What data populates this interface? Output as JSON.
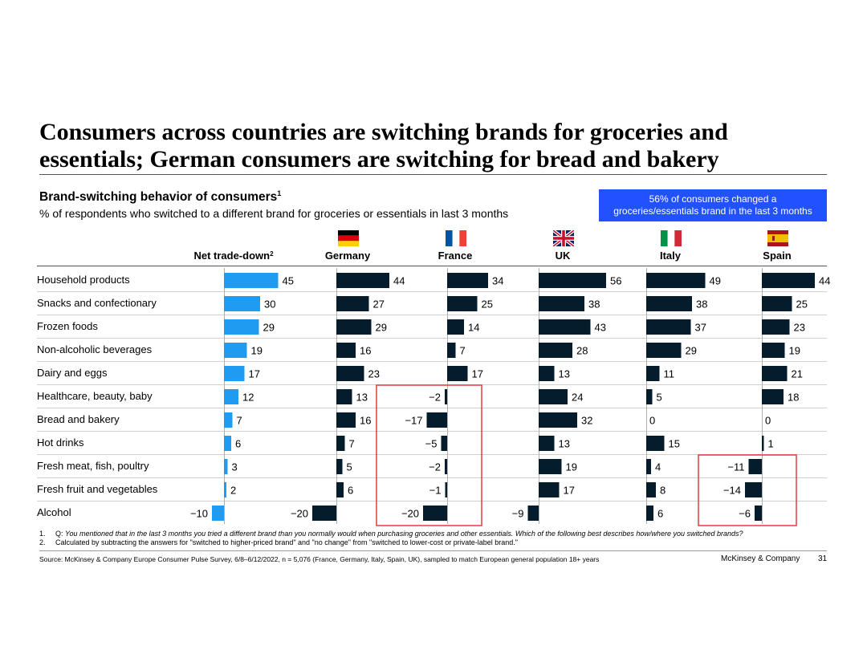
{
  "title": "Consumers across countries are switching brands for groceries and essentials; German consumers are switching for bread and bakery",
  "subtitle": "Brand-switching behavior of consumers",
  "subtitle_sup": "1",
  "description": "% of respondents who switched to a different brand for groceries or essentials in last 3 months",
  "callout": {
    "line1": "56% of consumers changed a",
    "line2": "groceries/essentials brand in the last 3 months",
    "color": "#2251ff"
  },
  "chart_data": {
    "type": "bar",
    "orientation": "horizontal",
    "categories": [
      "Household products",
      "Snacks and confectionary",
      "Frozen foods",
      "Non-alcoholic beverages",
      "Dairy and eggs",
      "Healthcare, beauty, baby",
      "Bread and bakery",
      "Hot drinks",
      "Fresh meat, fish, poultry",
      "Fresh fruit and vegetables",
      "Alcohol"
    ],
    "series": [
      {
        "name": "Net trade-down",
        "sup": "2",
        "color": "#1f9bf2",
        "values": [
          45,
          30,
          29,
          19,
          17,
          12,
          7,
          6,
          3,
          2,
          -10
        ]
      },
      {
        "name": "Germany",
        "flag": "germany-flag-icon",
        "color": "#051c2c",
        "values": [
          44,
          27,
          29,
          16,
          23,
          13,
          16,
          7,
          5,
          6,
          -20
        ]
      },
      {
        "name": "France",
        "flag": "france-flag-icon",
        "color": "#051c2c",
        "values": [
          34,
          25,
          14,
          7,
          17,
          -2,
          -17,
          -5,
          -2,
          -1,
          -20
        ]
      },
      {
        "name": "UK",
        "flag": "uk-flag-icon",
        "color": "#051c2c",
        "values": [
          56,
          38,
          43,
          28,
          13,
          24,
          32,
          13,
          19,
          17,
          -9
        ]
      },
      {
        "name": "Italy",
        "flag": "italy-flag-icon",
        "color": "#051c2c",
        "values": [
          49,
          38,
          37,
          29,
          11,
          5,
          0,
          15,
          4,
          8,
          6
        ]
      },
      {
        "name": "Spain",
        "flag": "spain-flag-icon",
        "color": "#051c2c",
        "values": [
          44,
          25,
          23,
          19,
          21,
          18,
          0,
          1,
          -11,
          -14,
          -6
        ]
      }
    ],
    "highlights": [
      {
        "series": "France",
        "categories": [
          "Healthcare, beauty, baby",
          "Bread and bakery",
          "Hot drinks",
          "Fresh meat, fish, poultry",
          "Fresh fruit and vegetables",
          "Alcohol"
        ],
        "color": "#e8383d"
      },
      {
        "series": "Spain",
        "categories": [
          "Fresh meat, fish, poultry",
          "Fresh fruit and vegetables",
          "Alcohol"
        ],
        "color": "#e8383d"
      }
    ]
  },
  "footnotes": [
    {
      "num": "1.",
      "prefix": "Q: ",
      "text": "You mentioned that in the last 3 months you tried a different brand than you normally would when purchasing groceries and other essentials. Which of the following best describes how/where you switched brands?"
    },
    {
      "num": "2.",
      "prefix": "",
      "text": "Calculated by subtracting the answers for \"switched to higher-priced brand\" and \"no change\" from \"switched to lower-cost or private-label brand.\""
    }
  ],
  "source": "Source: McKinsey & Company Europe Consumer Pulse Survey, 6/8–6/12/2022, n = 5,076 (France, Germany, Italy, Spain, UK), sampled to match European general population 18+ years",
  "brand": "McKinsey & Company",
  "page_number": "31"
}
